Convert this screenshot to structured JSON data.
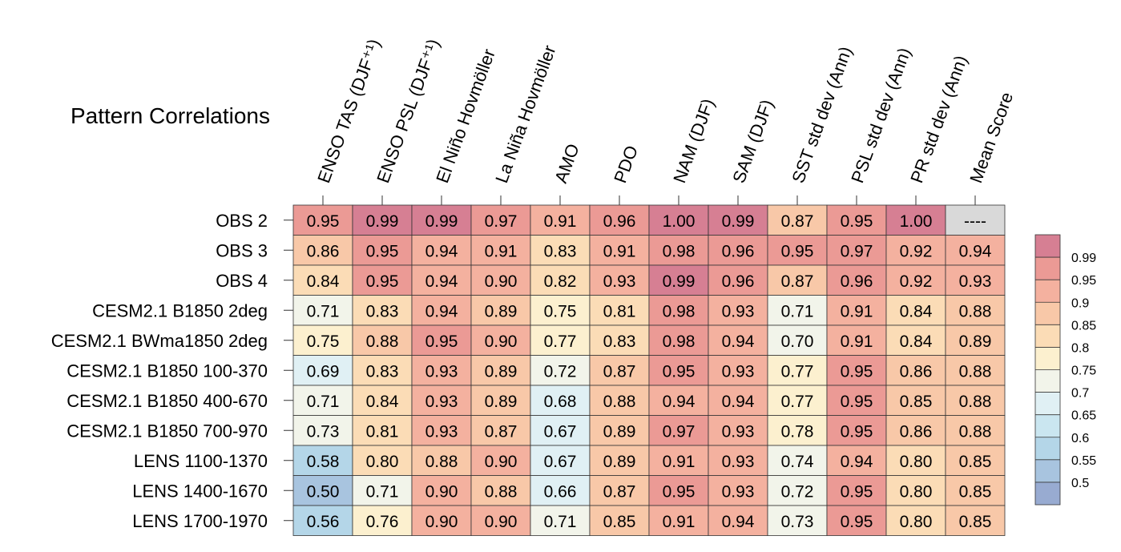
{
  "chart_data": {
    "type": "heatmap",
    "title": "Pattern Correlations",
    "columns": [
      "ENSO TAS (DJF⁺¹)",
      "ENSO PSL (DJF⁺¹)",
      "El Niño Hovmöller",
      "La Niña Hovmöller",
      "AMO",
      "PDO",
      "NAM (DJF)",
      "SAM (DJF)",
      "SST std dev (Ann)",
      "PSL std dev (Ann)",
      "PR std dev (Ann)",
      "Mean Score"
    ],
    "rows": [
      "OBS 2",
      "OBS 3",
      "OBS 4",
      "CESM2.1 B1850 2deg",
      "CESM2.1 BWma1850 2deg",
      "CESM2.1 B1850 100-370",
      "CESM2.1 B1850 400-670",
      "CESM2.1 B1850 700-970",
      "LENS 1100-1370",
      "LENS 1400-1670",
      "LENS 1700-1970"
    ],
    "values": [
      [
        "0.95",
        "0.99",
        "0.99",
        "0.97",
        "0.91",
        "0.96",
        "1.00",
        "0.99",
        "0.87",
        "0.95",
        "1.00",
        "----"
      ],
      [
        "0.86",
        "0.95",
        "0.94",
        "0.91",
        "0.83",
        "0.91",
        "0.98",
        "0.96",
        "0.95",
        "0.97",
        "0.92",
        "0.94"
      ],
      [
        "0.84",
        "0.95",
        "0.94",
        "0.90",
        "0.82",
        "0.93",
        "0.99",
        "0.96",
        "0.87",
        "0.96",
        "0.92",
        "0.93"
      ],
      [
        "0.71",
        "0.83",
        "0.94",
        "0.89",
        "0.75",
        "0.81",
        "0.98",
        "0.93",
        "0.71",
        "0.91",
        "0.84",
        "0.88"
      ],
      [
        "0.75",
        "0.88",
        "0.95",
        "0.90",
        "0.77",
        "0.83",
        "0.98",
        "0.94",
        "0.70",
        "0.91",
        "0.84",
        "0.89"
      ],
      [
        "0.69",
        "0.83",
        "0.93",
        "0.89",
        "0.72",
        "0.87",
        "0.95",
        "0.93",
        "0.77",
        "0.95",
        "0.86",
        "0.88"
      ],
      [
        "0.71",
        "0.84",
        "0.93",
        "0.89",
        "0.68",
        "0.88",
        "0.94",
        "0.94",
        "0.77",
        "0.95",
        "0.85",
        "0.88"
      ],
      [
        "0.73",
        "0.81",
        "0.93",
        "0.87",
        "0.67",
        "0.89",
        "0.97",
        "0.93",
        "0.78",
        "0.95",
        "0.86",
        "0.88"
      ],
      [
        "0.58",
        "0.80",
        "0.88",
        "0.90",
        "0.67",
        "0.89",
        "0.91",
        "0.93",
        "0.74",
        "0.94",
        "0.80",
        "0.85"
      ],
      [
        "0.50",
        "0.71",
        "0.90",
        "0.88",
        "0.66",
        "0.87",
        "0.95",
        "0.93",
        "0.72",
        "0.95",
        "0.80",
        "0.85"
      ],
      [
        "0.56",
        "0.76",
        "0.90",
        "0.90",
        "0.71",
        "0.85",
        "0.91",
        "0.94",
        "0.73",
        "0.95",
        "0.80",
        "0.85"
      ]
    ],
    "colorbar": {
      "labels": [
        "0.99",
        "0.95",
        "0.9",
        "0.85",
        "0.8",
        "0.75",
        "0.7",
        "0.65",
        "0.6",
        "0.55",
        "0.5"
      ],
      "thresholds": [
        0.99,
        0.95,
        0.9,
        0.85,
        0.8,
        0.75,
        0.7,
        0.65,
        0.6,
        0.55,
        0.5
      ],
      "colors": [
        "#d67f93",
        "#eb9a95",
        "#f4b19f",
        "#f8c8a8",
        "#fbdcb6",
        "#fcf0cf",
        "#f2f4ea",
        "#e0f0f4",
        "#cae6f0",
        "#b4d6e8",
        "#a8c4df",
        "#98abd1"
      ],
      "missing_color": "#d9d9d9"
    }
  }
}
